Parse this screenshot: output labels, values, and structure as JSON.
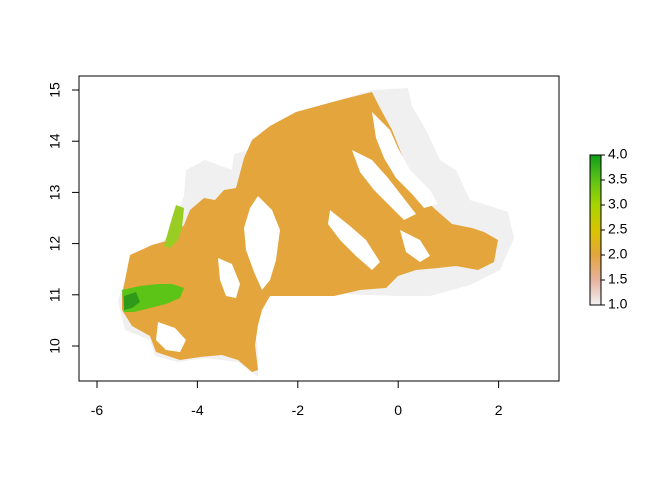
{
  "chart_data": {
    "type": "heatmap",
    "title": "",
    "xlabel": "",
    "ylabel": "",
    "xlim": [
      -6.3,
      3.2
    ],
    "ylim": [
      9.3,
      15.25
    ],
    "x_ticks": [
      -6,
      -4,
      -2,
      0,
      2
    ],
    "y_ticks": [
      10,
      11,
      12,
      13,
      14,
      15
    ],
    "grid": false,
    "legend": {
      "position": "right",
      "min": 1.0,
      "max": 4.0,
      "ticks": [
        "1.0",
        "1.5",
        "2.0",
        "2.5",
        "3.0",
        "3.5",
        "4.0"
      ],
      "colors": [
        "#f2f2f2",
        "#e6b2a0",
        "#e3a53c",
        "#d9c400",
        "#a8d400",
        "#5cc317",
        "#119d19"
      ]
    },
    "map_colors": {
      "background_region": "#f0f0f0",
      "class_2": "#e3a53c",
      "class_3": "#9acd24",
      "class_4": "#3da11b",
      "no_data": "#ffffff"
    }
  }
}
